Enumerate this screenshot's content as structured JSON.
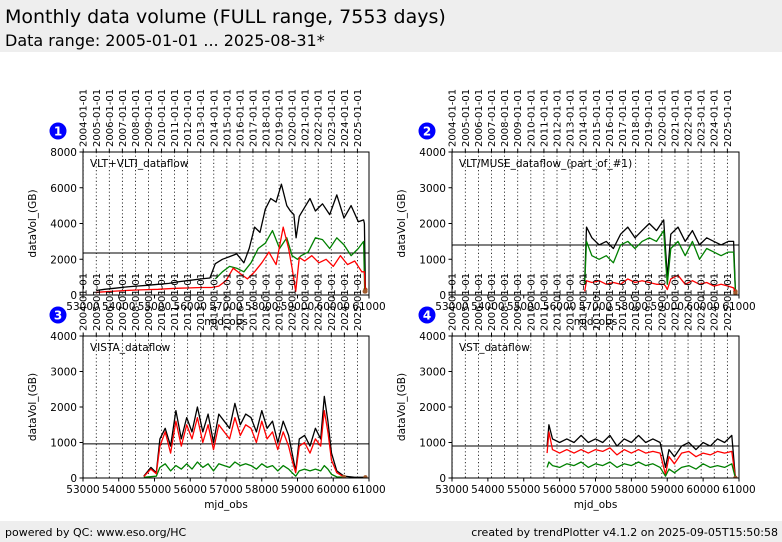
{
  "header": {
    "title": "Monthly data volume (FULL range, 7553 days)",
    "subtitle": "Data range: 2005-01-01 ... 2025-08-31*"
  },
  "footer": {
    "left": "powered by QC: www.eso.org/HC",
    "right": "created by trendPlotter v4.1.2 on 2025-09-05T15:50:58"
  },
  "colors": {
    "total": "#000000",
    "green": "#008000",
    "red": "#ff0000",
    "badge": "#0000ff",
    "header_bg": "#eeeeee"
  },
  "top_axis_dates": [
    "2004-01-01",
    "2005-01-01",
    "2006-01-01",
    "2007-01-01",
    "2008-01-01",
    "2009-01-01",
    "2010-01-01",
    "2011-01-01",
    "2012-01-01",
    "2013-01-01",
    "2014-01-01",
    "2015-01-01",
    "2016-01-01",
    "2017-01-01",
    "2018-01-01",
    "2019-01-01",
    "2020-01-01",
    "2021-01-01",
    "2022-01-01",
    "2023-01-01",
    "2024-01-01",
    "2025-01-01"
  ],
  "chart_data": [
    {
      "type": "line",
      "badge": "1",
      "annotation": "VLT+VLTI_dataflow",
      "xlabel": "mjd_obs",
      "ylabel": "dataVol_(GB)",
      "xlim": [
        53000,
        61000
      ],
      "ylim": [
        0,
        8000
      ],
      "x_ticks": [
        "53000",
        "54000",
        "55000",
        "56000",
        "57000",
        "58000",
        "59000",
        "60000",
        "61000"
      ],
      "y_ticks": [
        "0",
        "2000",
        "4000",
        "6000",
        "8000"
      ],
      "reference_line": 2350,
      "series": [
        {
          "color_key": "total",
          "x": [
            53370,
            53600,
            53900,
            54200,
            54500,
            54800,
            55100,
            55400,
            55700,
            56000,
            56300,
            56550,
            56700,
            56900,
            57100,
            57300,
            57500,
            57650,
            57800,
            57950,
            58100,
            58250,
            58400,
            58550,
            58700,
            58800,
            58900,
            58960,
            59050,
            59200,
            59350,
            59500,
            59700,
            59900,
            60100,
            60300,
            60500,
            60700,
            60850,
            60870,
            60900
          ],
          "y": [
            250,
            320,
            380,
            450,
            500,
            540,
            600,
            650,
            750,
            820,
            900,
            950,
            1750,
            2000,
            2150,
            2300,
            1800,
            2600,
            3800,
            3500,
            4800,
            5400,
            5200,
            6200,
            5000,
            4700,
            4500,
            3200,
            4400,
            4900,
            5400,
            4700,
            5100,
            4500,
            5600,
            4300,
            5000,
            4100,
            4200,
            4000,
            300
          ]
        },
        {
          "color_key": "green",
          "x": [
            56700,
            56900,
            57100,
            57300,
            57500,
            57700,
            57900,
            58100,
            58300,
            58500,
            58700,
            58850,
            59000,
            59100,
            59300,
            59500,
            59700,
            59900,
            60100,
            60300,
            60500,
            60700,
            60850,
            60880
          ],
          "y": [
            900,
            1300,
            1600,
            1500,
            1300,
            1800,
            2600,
            2900,
            3600,
            2600,
            3200,
            2200,
            2000,
            2200,
            2400,
            3200,
            3100,
            2600,
            3200,
            2800,
            2200,
            2600,
            3000,
            200
          ]
        },
        {
          "color_key": "red",
          "x": [
            53370,
            53600,
            53900,
            54200,
            54500,
            54800,
            55100,
            55400,
            55700,
            56000,
            56300,
            56600,
            56800,
            57000,
            57200,
            57400,
            57600,
            57800,
            58000,
            58200,
            58400,
            58600,
            58750,
            58850,
            58950,
            59050,
            59200,
            59400,
            59600,
            59800,
            60000,
            60200,
            60400,
            60600,
            60800,
            60870,
            60900
          ],
          "y": [
            150,
            180,
            220,
            250,
            280,
            300,
            320,
            350,
            380,
            400,
            420,
            420,
            500,
            800,
            1500,
            1200,
            900,
            1300,
            1800,
            2400,
            1700,
            3800,
            2600,
            1500,
            200,
            2100,
            1900,
            2200,
            1800,
            2000,
            1600,
            2200,
            1700,
            1900,
            1300,
            1300,
            200
          ]
        }
      ]
    },
    {
      "type": "line",
      "badge": "2",
      "annotation": "VLT/MUSE_dataflow_(part_of_#1)",
      "xlabel": "mjd_obs",
      "ylabel": "dataVol_(GB)",
      "xlim": [
        53000,
        61000
      ],
      "ylim": [
        0,
        4000
      ],
      "x_ticks": [
        "53000",
        "54000",
        "55000",
        "56000",
        "57000",
        "58000",
        "59000",
        "60000",
        "61000"
      ],
      "y_ticks": [
        "0",
        "1000",
        "2000",
        "3000",
        "4000"
      ],
      "reference_line": 1400,
      "series": [
        {
          "color_key": "total",
          "x": [
            56700,
            56750,
            56900,
            57100,
            57300,
            57500,
            57700,
            57900,
            58100,
            58300,
            58500,
            58700,
            58900,
            58950,
            59000,
            59100,
            59300,
            59500,
            59700,
            59900,
            60100,
            60300,
            60500,
            60700,
            60850,
            60900
          ],
          "y": [
            400,
            1900,
            1600,
            1400,
            1500,
            1300,
            1700,
            1900,
            1600,
            1800,
            2000,
            1800,
            2100,
            1300,
            500,
            1700,
            1900,
            1500,
            1800,
            1400,
            1600,
            1500,
            1400,
            1500,
            1500,
            100
          ]
        },
        {
          "color_key": "green",
          "x": [
            56700,
            56750,
            56900,
            57100,
            57300,
            57500,
            57700,
            57900,
            58100,
            58300,
            58500,
            58700,
            58900,
            58950,
            59000,
            59100,
            59300,
            59500,
            59700,
            59900,
            60100,
            60300,
            60500,
            60700,
            60850,
            60900
          ],
          "y": [
            300,
            1500,
            1100,
            1000,
            1100,
            900,
            1400,
            1500,
            1300,
            1500,
            1600,
            1500,
            1800,
            1000,
            300,
            1300,
            1500,
            1100,
            1500,
            1000,
            1300,
            1200,
            1100,
            1200,
            1200,
            100
          ]
        },
        {
          "color_key": "red",
          "x": [
            56700,
            56750,
            56900,
            57100,
            57300,
            57500,
            57700,
            57900,
            58100,
            58300,
            58500,
            58700,
            58900,
            58950,
            59000,
            59100,
            59300,
            59500,
            59700,
            59900,
            60100,
            60300,
            60500,
            60700,
            60850,
            60900
          ],
          "y": [
            100,
            400,
            350,
            400,
            300,
            350,
            300,
            450,
            350,
            400,
            350,
            300,
            300,
            250,
            150,
            450,
            550,
            300,
            400,
            300,
            350,
            250,
            300,
            250,
            200,
            50
          ]
        }
      ]
    },
    {
      "type": "line",
      "badge": "3",
      "annotation": "VISTA_dataflow",
      "xlabel": "mjd_obs",
      "ylabel": "dataVol_(GB)",
      "xlim": [
        53000,
        61000
      ],
      "ylim": [
        0,
        4000
      ],
      "x_ticks": [
        "53000",
        "54000",
        "55000",
        "56000",
        "57000",
        "58000",
        "59000",
        "60000",
        "61000"
      ],
      "y_ticks": [
        "0",
        "1000",
        "2000",
        "3000",
        "4000"
      ],
      "reference_line": 960,
      "series": [
        {
          "color_key": "total",
          "x": [
            54700,
            54900,
            55050,
            55150,
            55300,
            55450,
            55600,
            55750,
            55900,
            56050,
            56200,
            56350,
            56500,
            56650,
            56800,
            56950,
            57100,
            57250,
            57400,
            57550,
            57700,
            57850,
            58000,
            58150,
            58300,
            58450,
            58600,
            58750,
            58850,
            58950,
            59050,
            59200,
            59350,
            59500,
            59650,
            59750,
            59850,
            59950,
            60100,
            60300,
            60600,
            60900
          ],
          "y": [
            50,
            300,
            150,
            1100,
            1400,
            900,
            1900,
            1100,
            1700,
            1300,
            2000,
            1300,
            1800,
            1000,
            1800,
            1600,
            1400,
            2100,
            1500,
            1800,
            1700,
            1300,
            1900,
            1400,
            1600,
            1000,
            1600,
            1200,
            700,
            200,
            1100,
            1200,
            900,
            1400,
            1100,
            2300,
            1600,
            700,
            200,
            50,
            20,
            20
          ]
        },
        {
          "color_key": "green",
          "x": [
            54700,
            55050,
            55150,
            55300,
            55450,
            55600,
            55750,
            55900,
            56050,
            56200,
            56350,
            56500,
            56650,
            56800,
            56950,
            57100,
            57250,
            57400,
            57550,
            57700,
            57850,
            58000,
            58150,
            58300,
            58450,
            58600,
            58750,
            58850,
            58950,
            59050,
            59200,
            59350,
            59500,
            59650,
            59750,
            59850,
            59950,
            60100,
            60300
          ],
          "y": [
            20,
            50,
            300,
            400,
            200,
            350,
            250,
            400,
            250,
            450,
            300,
            400,
            200,
            400,
            350,
            300,
            450,
            350,
            400,
            350,
            250,
            400,
            300,
            350,
            200,
            350,
            250,
            150,
            50,
            200,
            250,
            200,
            250,
            200,
            350,
            250,
            100,
            30,
            20
          ]
        },
        {
          "color_key": "red",
          "x": [
            54700,
            54900,
            55050,
            55150,
            55300,
            55450,
            55600,
            55750,
            55900,
            56050,
            56200,
            56350,
            56500,
            56650,
            56800,
            56950,
            57100,
            57250,
            57400,
            57550,
            57700,
            57850,
            58000,
            58150,
            58300,
            58450,
            58600,
            58750,
            58850,
            58950,
            59050,
            59200,
            59350,
            59500,
            59650,
            59750,
            59850,
            59950,
            60100,
            60300
          ],
          "y": [
            40,
            250,
            120,
            900,
            1300,
            700,
            1600,
            900,
            1500,
            1100,
            1700,
            1000,
            1500,
            800,
            1500,
            1300,
            1100,
            1700,
            1200,
            1500,
            1400,
            1000,
            1600,
            1100,
            1300,
            800,
            1300,
            900,
            500,
            150,
            900,
            1000,
            700,
            1100,
            900,
            1900,
            1300,
            500,
            150,
            30
          ]
        }
      ]
    },
    {
      "type": "line",
      "badge": "4",
      "annotation": "VST_dataflow",
      "xlabel": "mjd_obs",
      "ylabel": "dataVol_(GB)",
      "xlim": [
        53000,
        61000
      ],
      "ylim": [
        0,
        4000
      ],
      "x_ticks": [
        "53000",
        "54000",
        "55000",
        "56000",
        "57000",
        "58000",
        "59000",
        "60000",
        "61000"
      ],
      "y_ticks": [
        "0",
        "1000",
        "2000",
        "3000",
        "4000"
      ],
      "reference_line": 900,
      "series": [
        {
          "color_key": "total",
          "x": [
            55650,
            55700,
            55800,
            56000,
            56200,
            56400,
            56600,
            56800,
            57000,
            57200,
            57400,
            57600,
            57800,
            58000,
            58200,
            58400,
            58600,
            58800,
            58950,
            59050,
            59200,
            59400,
            59600,
            59800,
            60000,
            60200,
            60400,
            60600,
            60800,
            60900
          ],
          "y": [
            900,
            1500,
            1100,
            1000,
            1100,
            1000,
            1200,
            1000,
            1100,
            1000,
            1200,
            900,
            1100,
            1000,
            1200,
            1000,
            1100,
            1000,
            300,
            800,
            600,
            900,
            1000,
            800,
            1000,
            900,
            1100,
            1000,
            1200,
            0
          ]
        },
        {
          "color_key": "red",
          "x": [
            55650,
            55700,
            55800,
            56000,
            56200,
            56400,
            56600,
            56800,
            57000,
            57200,
            57400,
            57600,
            57800,
            58000,
            58200,
            58400,
            58600,
            58800,
            58950,
            59050,
            59200,
            59400,
            59600,
            59800,
            60000,
            60200,
            60400,
            60600,
            60800,
            60900
          ],
          "y": [
            700,
            1300,
            800,
            700,
            800,
            700,
            800,
            700,
            800,
            750,
            850,
            650,
            800,
            700,
            800,
            700,
            750,
            700,
            100,
            600,
            400,
            700,
            750,
            600,
            700,
            650,
            750,
            700,
            750,
            0
          ]
        },
        {
          "color_key": "green",
          "x": [
            55650,
            55700,
            55800,
            56000,
            56200,
            56400,
            56600,
            56800,
            57000,
            57200,
            57400,
            57600,
            57800,
            58000,
            58200,
            58400,
            58600,
            58800,
            58950,
            59050,
            59200,
            59400,
            59600,
            59800,
            60000,
            60200,
            60400,
            60600,
            60800,
            60900
          ],
          "y": [
            300,
            450,
            350,
            300,
            400,
            350,
            450,
            300,
            400,
            350,
            450,
            300,
            400,
            350,
            450,
            350,
            400,
            300,
            50,
            250,
            150,
            300,
            350,
            250,
            400,
            300,
            350,
            300,
            400,
            0
          ]
        }
      ]
    }
  ]
}
